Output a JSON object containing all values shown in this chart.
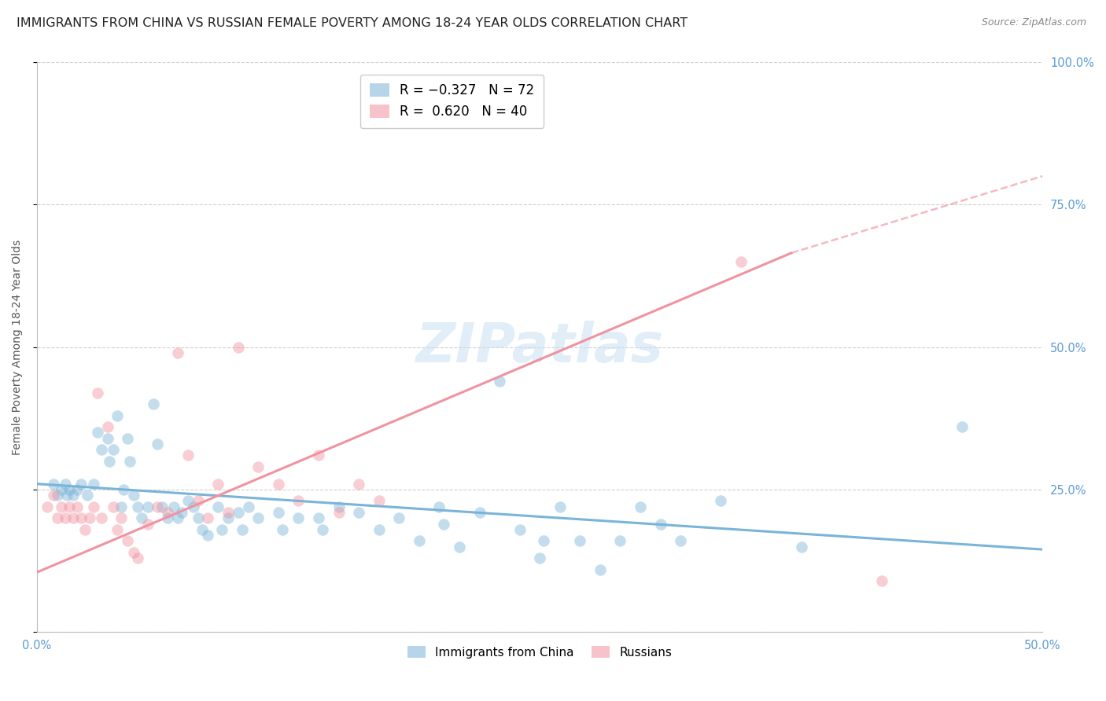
{
  "title": "IMMIGRANTS FROM CHINA VS RUSSIAN FEMALE POVERTY AMONG 18-24 YEAR OLDS CORRELATION CHART",
  "source": "Source: ZipAtlas.com",
  "ylabel": "Female Poverty Among 18-24 Year Olds",
  "xlim": [
    0.0,
    0.5
  ],
  "ylim": [
    0.0,
    1.0
  ],
  "xticks": [
    0.0,
    0.1,
    0.2,
    0.3,
    0.4,
    0.5
  ],
  "xticklabels": [
    "0.0%",
    "",
    "",
    "",
    "",
    "50.0%"
  ],
  "yticks": [
    0.0,
    0.25,
    0.5,
    0.75,
    1.0
  ],
  "yticklabels_right": [
    "",
    "25.0%",
    "50.0%",
    "75.0%",
    "100.0%"
  ],
  "watermark": "ZIPatlas",
  "china_color": "#7ab4d8",
  "russia_color": "#f093a0",
  "china_scatter": [
    [
      0.008,
      0.26
    ],
    [
      0.01,
      0.24
    ],
    [
      0.012,
      0.25
    ],
    [
      0.014,
      0.26
    ],
    [
      0.015,
      0.24
    ],
    [
      0.016,
      0.25
    ],
    [
      0.018,
      0.24
    ],
    [
      0.02,
      0.25
    ],
    [
      0.022,
      0.26
    ],
    [
      0.025,
      0.24
    ],
    [
      0.028,
      0.26
    ],
    [
      0.03,
      0.35
    ],
    [
      0.032,
      0.32
    ],
    [
      0.035,
      0.34
    ],
    [
      0.036,
      0.3
    ],
    [
      0.038,
      0.32
    ],
    [
      0.04,
      0.38
    ],
    [
      0.042,
      0.22
    ],
    [
      0.043,
      0.25
    ],
    [
      0.045,
      0.34
    ],
    [
      0.046,
      0.3
    ],
    [
      0.048,
      0.24
    ],
    [
      0.05,
      0.22
    ],
    [
      0.052,
      0.2
    ],
    [
      0.055,
      0.22
    ],
    [
      0.058,
      0.4
    ],
    [
      0.06,
      0.33
    ],
    [
      0.062,
      0.22
    ],
    [
      0.065,
      0.2
    ],
    [
      0.068,
      0.22
    ],
    [
      0.07,
      0.2
    ],
    [
      0.072,
      0.21
    ],
    [
      0.075,
      0.23
    ],
    [
      0.078,
      0.22
    ],
    [
      0.08,
      0.2
    ],
    [
      0.082,
      0.18
    ],
    [
      0.085,
      0.17
    ],
    [
      0.09,
      0.22
    ],
    [
      0.092,
      0.18
    ],
    [
      0.095,
      0.2
    ],
    [
      0.1,
      0.21
    ],
    [
      0.102,
      0.18
    ],
    [
      0.105,
      0.22
    ],
    [
      0.11,
      0.2
    ],
    [
      0.12,
      0.21
    ],
    [
      0.122,
      0.18
    ],
    [
      0.13,
      0.2
    ],
    [
      0.14,
      0.2
    ],
    [
      0.142,
      0.18
    ],
    [
      0.15,
      0.22
    ],
    [
      0.16,
      0.21
    ],
    [
      0.17,
      0.18
    ],
    [
      0.18,
      0.2
    ],
    [
      0.19,
      0.16
    ],
    [
      0.2,
      0.22
    ],
    [
      0.202,
      0.19
    ],
    [
      0.21,
      0.15
    ],
    [
      0.22,
      0.21
    ],
    [
      0.23,
      0.44
    ],
    [
      0.24,
      0.18
    ],
    [
      0.25,
      0.13
    ],
    [
      0.252,
      0.16
    ],
    [
      0.26,
      0.22
    ],
    [
      0.27,
      0.16
    ],
    [
      0.28,
      0.11
    ],
    [
      0.29,
      0.16
    ],
    [
      0.3,
      0.22
    ],
    [
      0.31,
      0.19
    ],
    [
      0.32,
      0.16
    ],
    [
      0.34,
      0.23
    ],
    [
      0.38,
      0.15
    ],
    [
      0.46,
      0.36
    ]
  ],
  "russia_scatter": [
    [
      0.005,
      0.22
    ],
    [
      0.008,
      0.24
    ],
    [
      0.01,
      0.2
    ],
    [
      0.012,
      0.22
    ],
    [
      0.014,
      0.2
    ],
    [
      0.016,
      0.22
    ],
    [
      0.018,
      0.2
    ],
    [
      0.02,
      0.22
    ],
    [
      0.022,
      0.2
    ],
    [
      0.024,
      0.18
    ],
    [
      0.026,
      0.2
    ],
    [
      0.028,
      0.22
    ],
    [
      0.03,
      0.42
    ],
    [
      0.032,
      0.2
    ],
    [
      0.035,
      0.36
    ],
    [
      0.038,
      0.22
    ],
    [
      0.04,
      0.18
    ],
    [
      0.042,
      0.2
    ],
    [
      0.045,
      0.16
    ],
    [
      0.048,
      0.14
    ],
    [
      0.05,
      0.13
    ],
    [
      0.055,
      0.19
    ],
    [
      0.06,
      0.22
    ],
    [
      0.065,
      0.21
    ],
    [
      0.07,
      0.49
    ],
    [
      0.075,
      0.31
    ],
    [
      0.08,
      0.23
    ],
    [
      0.085,
      0.2
    ],
    [
      0.09,
      0.26
    ],
    [
      0.095,
      0.21
    ],
    [
      0.1,
      0.5
    ],
    [
      0.11,
      0.29
    ],
    [
      0.12,
      0.26
    ],
    [
      0.13,
      0.23
    ],
    [
      0.14,
      0.31
    ],
    [
      0.15,
      0.21
    ],
    [
      0.16,
      0.26
    ],
    [
      0.17,
      0.23
    ],
    [
      0.35,
      0.65
    ],
    [
      0.42,
      0.09
    ]
  ],
  "china_line": {
    "x0": 0.0,
    "x1": 0.5,
    "y0": 0.26,
    "y1": 0.145
  },
  "russia_line_solid": {
    "x0": 0.0,
    "x1": 0.375,
    "y0": 0.105,
    "y1": 0.665
  },
  "russia_line_dash": {
    "x0": 0.375,
    "x1": 0.5,
    "y0": 0.665,
    "y1": 0.8
  },
  "background_color": "#ffffff",
  "grid_color": "#d0d0d0",
  "tick_color": "#5b9bd5",
  "title_fontsize": 11.5,
  "axis_label_fontsize": 10,
  "tick_fontsize": 10.5
}
